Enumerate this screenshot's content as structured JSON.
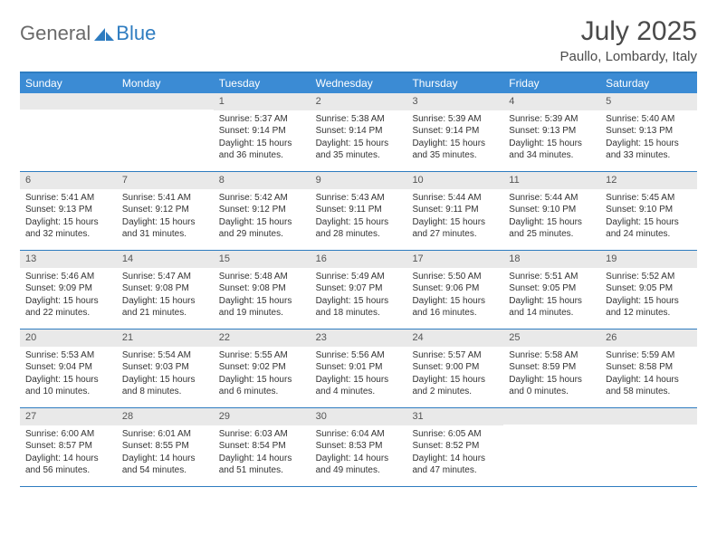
{
  "logo": {
    "text1": "General",
    "text2": "Blue"
  },
  "title": "July 2025",
  "location": "Paullo, Lombardy, Italy",
  "accent_color": "#3b8bd4",
  "border_color": "#2e7cc0",
  "day_num_bg": "#e9e9e9",
  "day_headers": [
    "Sunday",
    "Monday",
    "Tuesday",
    "Wednesday",
    "Thursday",
    "Friday",
    "Saturday"
  ],
  "weeks": [
    [
      null,
      null,
      {
        "n": "1",
        "sr": "5:37 AM",
        "ss": "9:14 PM",
        "dl": "15 hours and 36 minutes."
      },
      {
        "n": "2",
        "sr": "5:38 AM",
        "ss": "9:14 PM",
        "dl": "15 hours and 35 minutes."
      },
      {
        "n": "3",
        "sr": "5:39 AM",
        "ss": "9:14 PM",
        "dl": "15 hours and 35 minutes."
      },
      {
        "n": "4",
        "sr": "5:39 AM",
        "ss": "9:13 PM",
        "dl": "15 hours and 34 minutes."
      },
      {
        "n": "5",
        "sr": "5:40 AM",
        "ss": "9:13 PM",
        "dl": "15 hours and 33 minutes."
      }
    ],
    [
      {
        "n": "6",
        "sr": "5:41 AM",
        "ss": "9:13 PM",
        "dl": "15 hours and 32 minutes."
      },
      {
        "n": "7",
        "sr": "5:41 AM",
        "ss": "9:12 PM",
        "dl": "15 hours and 31 minutes."
      },
      {
        "n": "8",
        "sr": "5:42 AM",
        "ss": "9:12 PM",
        "dl": "15 hours and 29 minutes."
      },
      {
        "n": "9",
        "sr": "5:43 AM",
        "ss": "9:11 PM",
        "dl": "15 hours and 28 minutes."
      },
      {
        "n": "10",
        "sr": "5:44 AM",
        "ss": "9:11 PM",
        "dl": "15 hours and 27 minutes."
      },
      {
        "n": "11",
        "sr": "5:44 AM",
        "ss": "9:10 PM",
        "dl": "15 hours and 25 minutes."
      },
      {
        "n": "12",
        "sr": "5:45 AM",
        "ss": "9:10 PM",
        "dl": "15 hours and 24 minutes."
      }
    ],
    [
      {
        "n": "13",
        "sr": "5:46 AM",
        "ss": "9:09 PM",
        "dl": "15 hours and 22 minutes."
      },
      {
        "n": "14",
        "sr": "5:47 AM",
        "ss": "9:08 PM",
        "dl": "15 hours and 21 minutes."
      },
      {
        "n": "15",
        "sr": "5:48 AM",
        "ss": "9:08 PM",
        "dl": "15 hours and 19 minutes."
      },
      {
        "n": "16",
        "sr": "5:49 AM",
        "ss": "9:07 PM",
        "dl": "15 hours and 18 minutes."
      },
      {
        "n": "17",
        "sr": "5:50 AM",
        "ss": "9:06 PM",
        "dl": "15 hours and 16 minutes."
      },
      {
        "n": "18",
        "sr": "5:51 AM",
        "ss": "9:05 PM",
        "dl": "15 hours and 14 minutes."
      },
      {
        "n": "19",
        "sr": "5:52 AM",
        "ss": "9:05 PM",
        "dl": "15 hours and 12 minutes."
      }
    ],
    [
      {
        "n": "20",
        "sr": "5:53 AM",
        "ss": "9:04 PM",
        "dl": "15 hours and 10 minutes."
      },
      {
        "n": "21",
        "sr": "5:54 AM",
        "ss": "9:03 PM",
        "dl": "15 hours and 8 minutes."
      },
      {
        "n": "22",
        "sr": "5:55 AM",
        "ss": "9:02 PM",
        "dl": "15 hours and 6 minutes."
      },
      {
        "n": "23",
        "sr": "5:56 AM",
        "ss": "9:01 PM",
        "dl": "15 hours and 4 minutes."
      },
      {
        "n": "24",
        "sr": "5:57 AM",
        "ss": "9:00 PM",
        "dl": "15 hours and 2 minutes."
      },
      {
        "n": "25",
        "sr": "5:58 AM",
        "ss": "8:59 PM",
        "dl": "15 hours and 0 minutes."
      },
      {
        "n": "26",
        "sr": "5:59 AM",
        "ss": "8:58 PM",
        "dl": "14 hours and 58 minutes."
      }
    ],
    [
      {
        "n": "27",
        "sr": "6:00 AM",
        "ss": "8:57 PM",
        "dl": "14 hours and 56 minutes."
      },
      {
        "n": "28",
        "sr": "6:01 AM",
        "ss": "8:55 PM",
        "dl": "14 hours and 54 minutes."
      },
      {
        "n": "29",
        "sr": "6:03 AM",
        "ss": "8:54 PM",
        "dl": "14 hours and 51 minutes."
      },
      {
        "n": "30",
        "sr": "6:04 AM",
        "ss": "8:53 PM",
        "dl": "14 hours and 49 minutes."
      },
      {
        "n": "31",
        "sr": "6:05 AM",
        "ss": "8:52 PM",
        "dl": "14 hours and 47 minutes."
      },
      null,
      null
    ]
  ],
  "labels": {
    "sunrise": "Sunrise:",
    "sunset": "Sunset:",
    "daylight": "Daylight:"
  }
}
